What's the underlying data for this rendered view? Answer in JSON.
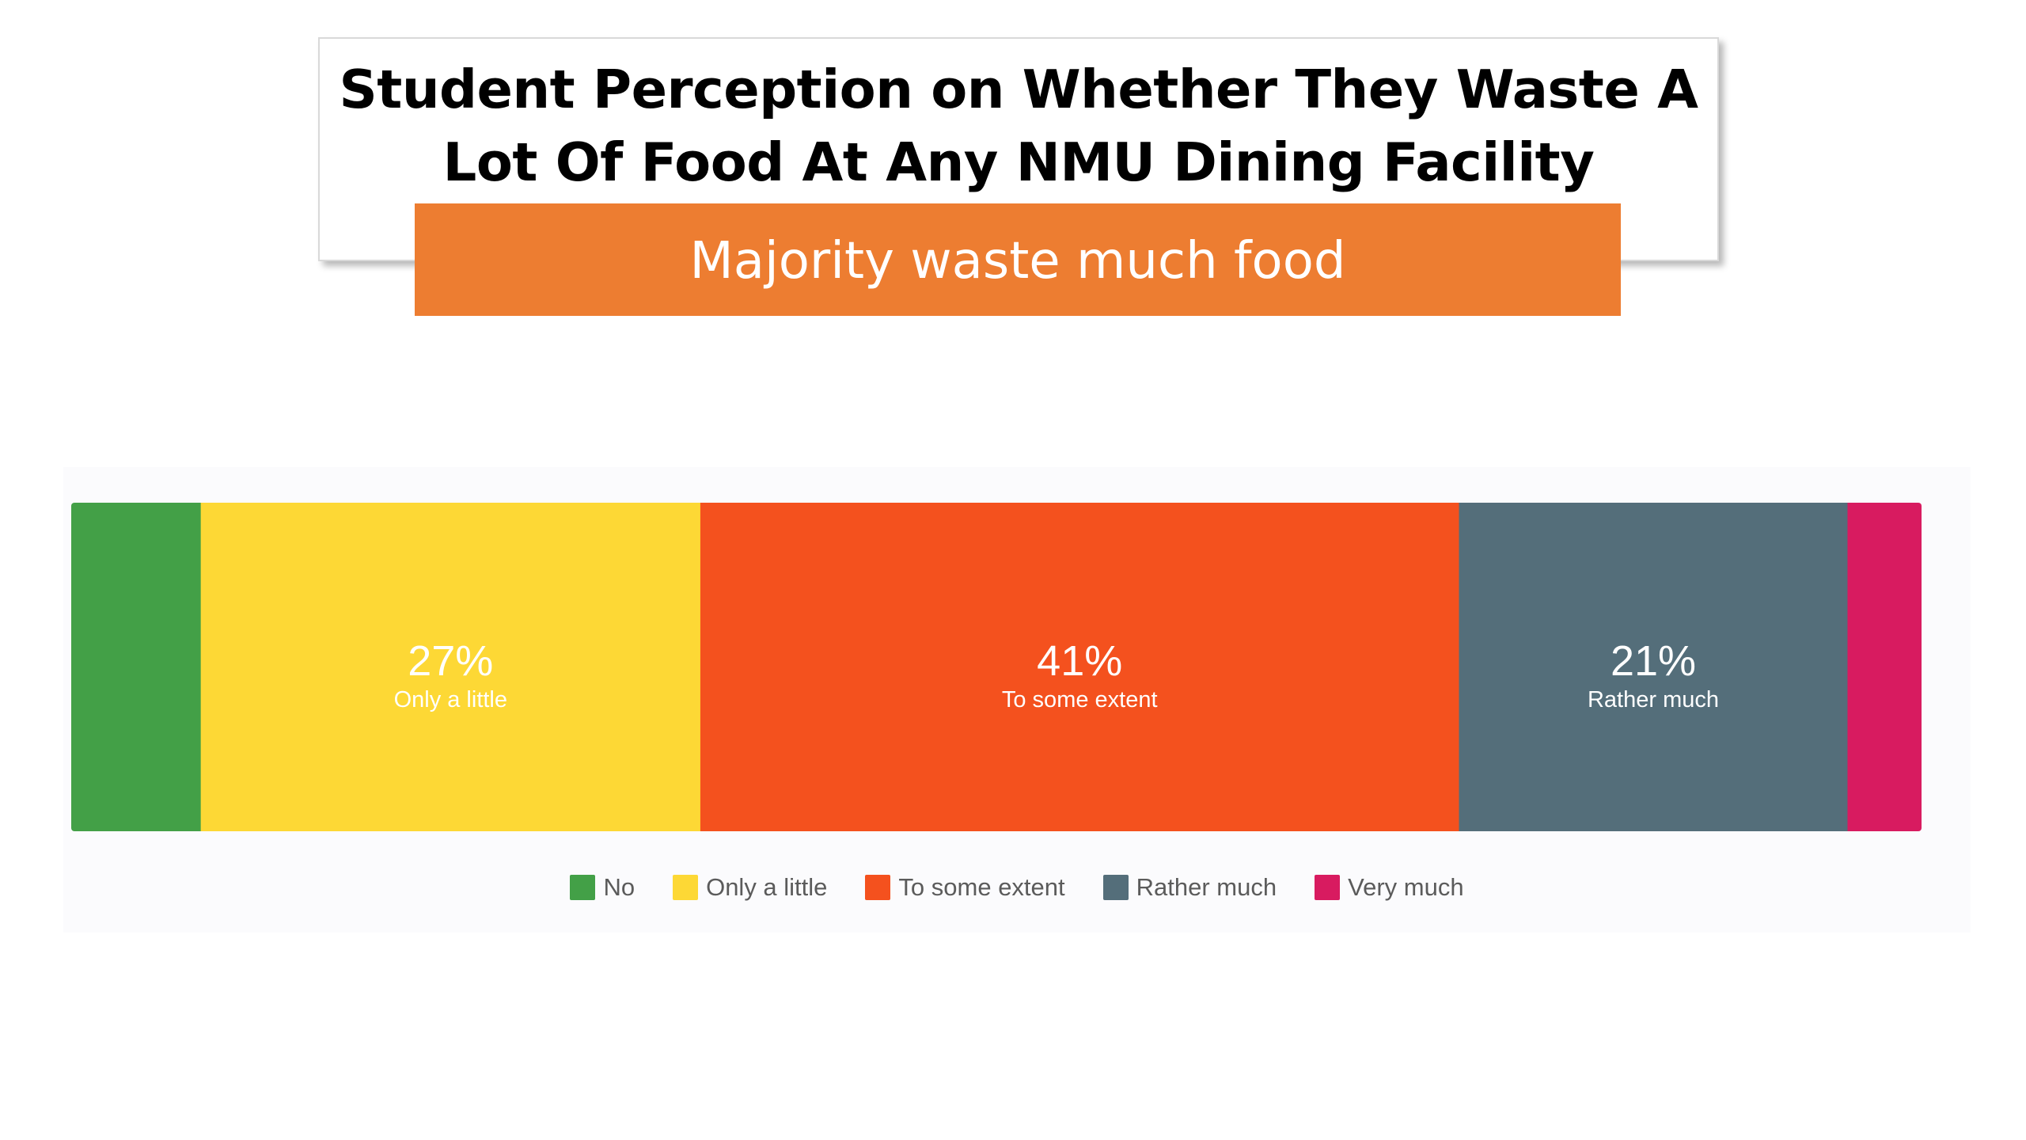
{
  "title": "Student Perception on Whether They Waste A Lot Of Food At Any NMU Dining Facility",
  "title_lines": [
    "Student Perception on Whether They Waste A",
    "Lot Of Food At Any NMU Dining Facility"
  ],
  "subtitle": "Majority waste much food",
  "colors": {
    "title_band": "#ed7d31",
    "panel_bg": "#fbfbfd"
  },
  "chart_data": {
    "type": "bar",
    "orientation": "horizontal-stacked-100",
    "categories": [
      "No",
      "Only a little",
      "To some extent",
      "Rather much",
      "Very much"
    ],
    "values": [
      7,
      27,
      41,
      21,
      4
    ],
    "labels_shown": [
      {
        "category": "Only a little",
        "pct": "27%"
      },
      {
        "category": "To some extent",
        "pct": "41%"
      },
      {
        "category": "Rather much",
        "pct": "21%"
      }
    ],
    "colors": [
      "#43a047",
      "#fdd835",
      "#f4511e",
      "#546e7a",
      "#d81b60"
    ],
    "legend_position": "bottom",
    "unit": "%",
    "grid": false
  }
}
